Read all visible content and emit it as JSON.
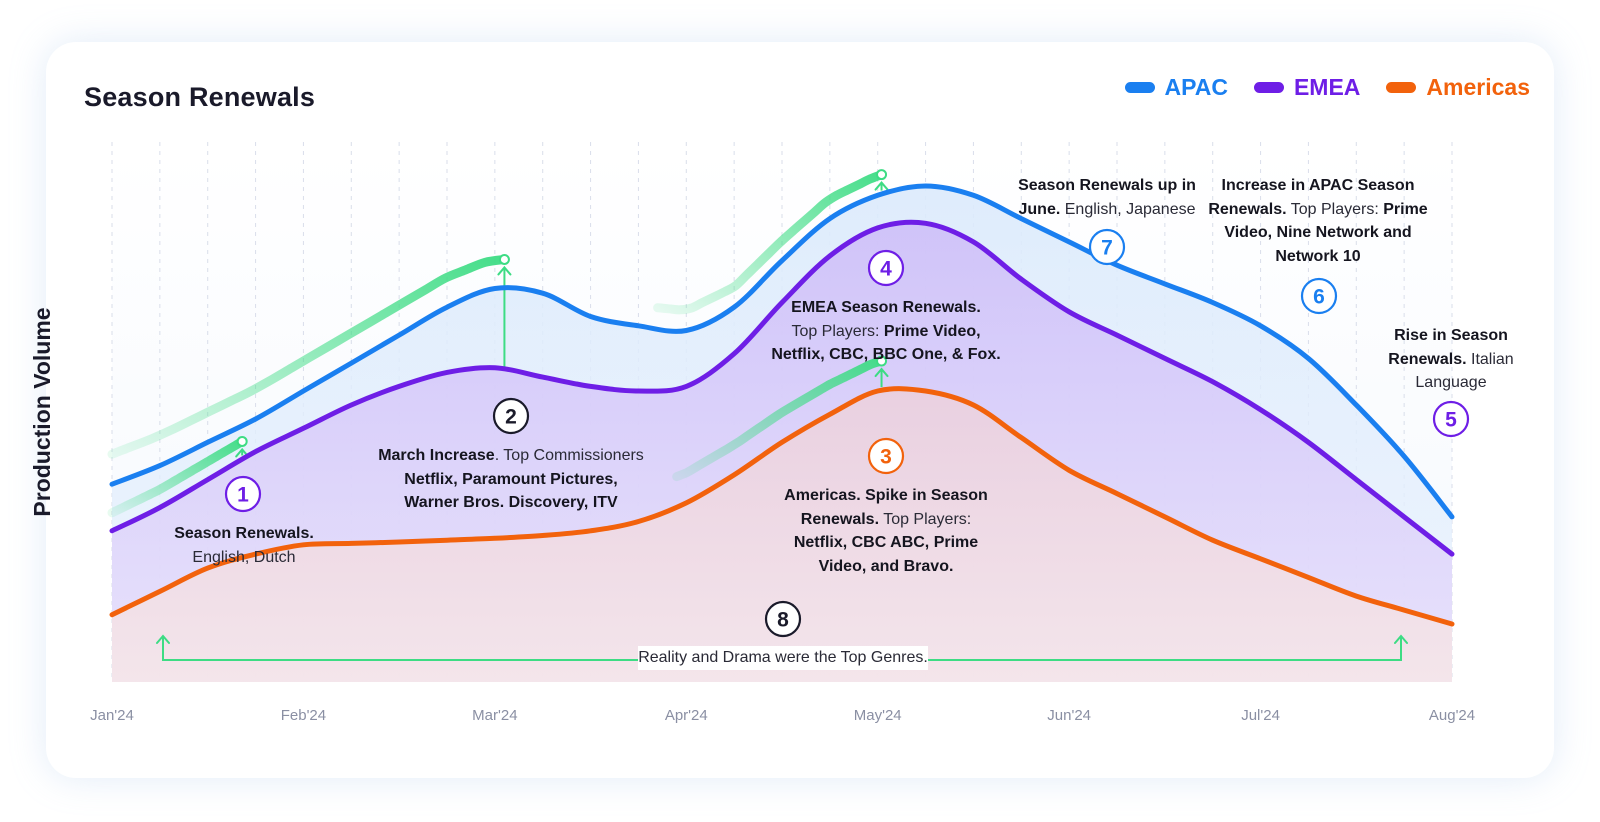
{
  "card": {
    "title": "Season Renewals"
  },
  "chart_data": {
    "type": "line",
    "title": "Season Renewals",
    "ylabel": "Production Volume",
    "xlabel": "",
    "categories": [
      "Jan'24",
      "Feb'24",
      "Mar'24",
      "Apr'24",
      "May'24",
      "Jun'24",
      "Jul'24",
      "Aug'24"
    ],
    "x": [
      0,
      0.25,
      0.5,
      0.75,
      1,
      1.25,
      1.5,
      1.75,
      2,
      2.25,
      2.5,
      2.75,
      3,
      3.25,
      3.5,
      3.75,
      4,
      4.25,
      4.5,
      4.75,
      5,
      5.25,
      5.5,
      5.75,
      6,
      6.25,
      6.5,
      6.75,
      7
    ],
    "ylim": [
      0,
      100
    ],
    "grid": true,
    "legend_position": "top-right",
    "series": [
      {
        "name": "APAC",
        "color": "#1a7ff0",
        "values": [
          36,
          40,
          45,
          50,
          56,
          62,
          68,
          74,
          78,
          77,
          72,
          70,
          69,
          74,
          84,
          93,
          98,
          100,
          98,
          93,
          88,
          83,
          79,
          75,
          70,
          63,
          53,
          42,
          29
        ]
      },
      {
        "name": "EMEA",
        "color": "#6e1ee6",
        "values": [
          26,
          31,
          37,
          43,
          48,
          53,
          57,
          60,
          61,
          59,
          57,
          56,
          57,
          64,
          75,
          85,
          91,
          92,
          88,
          80,
          73,
          68,
          63,
          58,
          52,
          45,
          37,
          29,
          21
        ]
      },
      {
        "name": "Americas",
        "color": "#f2620c",
        "values": [
          8,
          13,
          18,
          21,
          23,
          23.3,
          23.6,
          24,
          24.4,
          25,
          26,
          28,
          32,
          38,
          45,
          51,
          56,
          56,
          53,
          46,
          39,
          34,
          29,
          24,
          20,
          16,
          12,
          9,
          6
        ]
      }
    ],
    "annotations": [
      {
        "num": "1",
        "color": "#6e1ee6",
        "bold": "Season Renewals.",
        "text": "English, Dutch"
      },
      {
        "num": "2",
        "color": "#1a1a2a",
        "bold": "March Increase.",
        "text": "Top Commissioners",
        "bold2": "Netflix, Paramount Pictures, Warner Bros. Discovery, ITV"
      },
      {
        "num": "3",
        "color": "#f2620c",
        "bold": "Americas. Spike in Season Renewals.",
        "text": "Top Players:",
        "bold2": "Netflix, CBC ABC, Prime Video, and Bravo."
      },
      {
        "num": "4",
        "color": "#6e1ee6",
        "bold": "EMEA Season Renewals.",
        "text": "Top Players:",
        "bold2": "Prime Video, Netflix, CBC, BBC One, & Fox."
      },
      {
        "num": "5",
        "color": "#6e1ee6",
        "bold": "Rise in Season Renewals.",
        "text": "Italian Language"
      },
      {
        "num": "6",
        "color": "#1a7ff0",
        "bold": "Increase in APAC Season Renewals.",
        "text": "Top Players:",
        "bold2": "Prime Video, Nine Network and Network 10"
      },
      {
        "num": "7",
        "color": "#1a7ff0",
        "bold": "Season Renewals up in June.",
        "text": "English, Japanese"
      },
      {
        "num": "8",
        "color": "#1a1a2a",
        "bold": "",
        "text": "Reality and Drama were the Top Genres."
      }
    ]
  }
}
